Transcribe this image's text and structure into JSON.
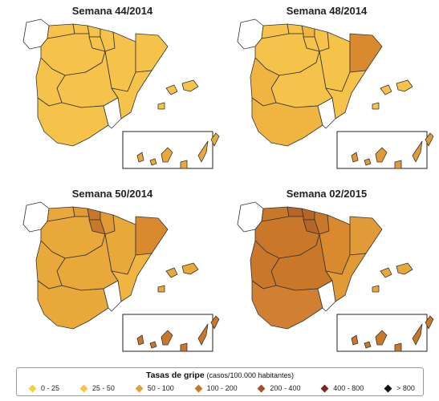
{
  "panels": [
    {
      "title": "Semana 44/2014",
      "regions": {
        "galicia": "#ffffff",
        "asturias": "#f5c34a",
        "cantabria": "#f5c34a",
        "pais_vasco": "#f5c34a",
        "navarra": "#f5c34a",
        "rioja": "#f5c34a",
        "aragon": "#f5c34a",
        "cataluna": "#f5c34a",
        "castilla_leon": "#f5c34a",
        "madrid": "#f5c34a",
        "castilla_mancha": "#f5c34a",
        "valencia": "#f5c34a",
        "extremadura": "#f5c34a",
        "andalucia": "#f5c34a",
        "murcia": "#ffffff",
        "baleares": "#f5c34a",
        "canarias": "#e8a93a"
      }
    },
    {
      "title": "Semana 48/2014",
      "regions": {
        "galicia": "#ffffff",
        "asturias": "#f5c34a",
        "cantabria": "#f5c34a",
        "pais_vasco": "#f0b540",
        "navarra": "#f5c34a",
        "rioja": "#f5c34a",
        "aragon": "#f5c34a",
        "cataluna": "#d98a2e",
        "castilla_leon": "#f5c34a",
        "madrid": "#f0b540",
        "castilla_mancha": "#f5c34a",
        "valencia": "#f5c34a",
        "extremadura": "#f0b540",
        "andalucia": "#f0b540",
        "murcia": "#ffffff",
        "baleares": "#f5c34a",
        "canarias": "#e09a36"
      }
    },
    {
      "title": "Semana 50/2014",
      "regions": {
        "galicia": "#ffffff",
        "asturias": "#e8a93a",
        "cantabria": "#e09a36",
        "pais_vasco": "#c9782a",
        "navarra": "#e09a36",
        "rioja": "#c9782a",
        "aragon": "#e8a93a",
        "cataluna": "#d98a2e",
        "castilla_leon": "#e8a93a",
        "madrid": "#e09a36",
        "castilla_mancha": "#e8a93a",
        "valencia": "#f0b540",
        "extremadura": "#e8a93a",
        "andalucia": "#e8a93a",
        "murcia": "#ffffff",
        "baleares": "#e8a93a",
        "canarias": "#c9782a"
      }
    },
    {
      "title": "Semana 02/2015",
      "regions": {
        "galicia": "#ffffff",
        "asturias": "#c9782a",
        "cantabria": "#b8652a",
        "pais_vasco": "#b8652a",
        "navarra": "#c9782a",
        "rioja": "#b8652a",
        "aragon": "#d98a2e",
        "cataluna": "#e09a36",
        "castilla_leon": "#c9782a",
        "madrid": "#b8652a",
        "castilla_mancha": "#c9782a",
        "valencia": "#e09a36",
        "extremadura": "#c9782a",
        "andalucia": "#d08030",
        "murcia": "#ffffff",
        "baleares": "#e8a93a",
        "canarias": "#c9782a"
      }
    }
  ],
  "legend": {
    "title": "Tasas de gripe",
    "subtitle": "(casos/100.000 habitantes)",
    "items": [
      {
        "label": "0 - 25",
        "color": "#f2d04a"
      },
      {
        "label": "25 - 50",
        "color": "#f5c34a"
      },
      {
        "label": "50 - 100",
        "color": "#e0a03a"
      },
      {
        "label": "100 - 200",
        "color": "#c9782a"
      },
      {
        "label": "200 - 400",
        "color": "#a8502a"
      },
      {
        "label": "400 - 800",
        "color": "#7a2a1e"
      },
      {
        "label": "> 800",
        "color": "#111111"
      }
    ]
  }
}
